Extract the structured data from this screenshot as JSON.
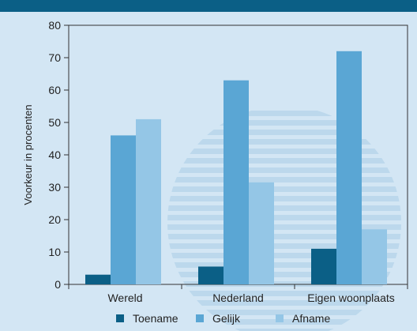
{
  "chart_data": {
    "type": "bar",
    "categories": [
      "Wereld",
      "Nederland",
      "Eigen woonplaats"
    ],
    "series": [
      {
        "name": "Toename",
        "values": [
          3,
          5.5,
          11
        ],
        "color": "#0b5f86"
      },
      {
        "name": "Gelijk",
        "values": [
          46,
          63,
          72
        ],
        "color": "#5aa6d4"
      },
      {
        "name": "Afname",
        "values": [
          51,
          31.5,
          17
        ],
        "color": "#94c6e6"
      }
    ],
    "title": "",
    "xlabel": "",
    "ylabel": "Voorkeur in procenten",
    "ylim": [
      0,
      80
    ],
    "yticks": [
      0,
      10,
      20,
      30,
      40,
      50,
      60,
      70,
      80
    ],
    "grid": false,
    "legend_position": "bottom"
  },
  "colors": {
    "background": "#d3e6f4",
    "top_band": "#0b5f86",
    "plot_background": "#d3e6f4",
    "watermark": "#bcd8ec"
  }
}
